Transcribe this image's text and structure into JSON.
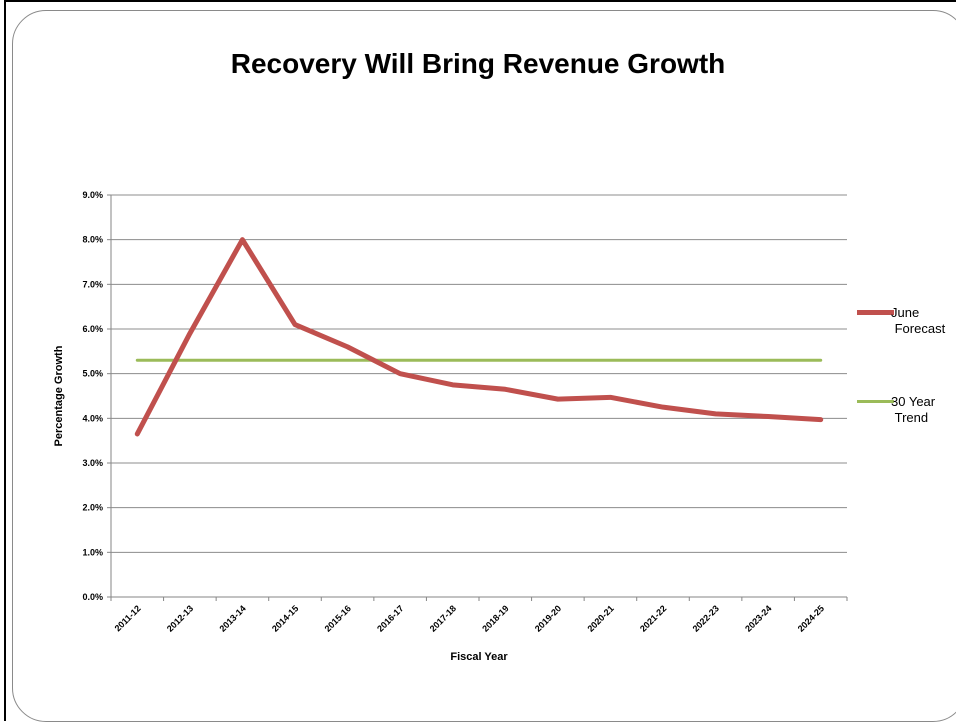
{
  "chart_data": {
    "type": "line",
    "title": "Recovery Will Bring Revenue Growth",
    "xlabel": "Fiscal Year",
    "ylabel": "Percentage Growth",
    "categories": [
      "2011-12",
      "2012-13",
      "2013-14",
      "2014-15",
      "2015-16",
      "2016-17",
      "2017-18",
      "2018-19",
      "2019-20",
      "2020-21",
      "2021-22",
      "2022-23",
      "2023-24",
      "2024-25"
    ],
    "ylim": [
      0,
      9
    ],
    "yticks": [
      "0.0%",
      "1.0%",
      "2.0%",
      "3.0%",
      "4.0%",
      "5.0%",
      "6.0%",
      "7.0%",
      "8.0%",
      "9.0%"
    ],
    "grid": true,
    "legend_position": "right",
    "series": [
      {
        "name": "June Forecast",
        "color": "#c0504d",
        "values": [
          3.65,
          5.9,
          8.0,
          6.1,
          5.6,
          5.0,
          4.75,
          4.65,
          4.43,
          4.47,
          4.25,
          4.1,
          4.04,
          3.97
        ]
      },
      {
        "name": "30 Year Trend",
        "color": "#9bbb59",
        "values": [
          5.3,
          5.3,
          5.3,
          5.3,
          5.3,
          5.3,
          5.3,
          5.3,
          5.3,
          5.3,
          5.3,
          5.3,
          5.3,
          5.3
        ]
      }
    ]
  }
}
